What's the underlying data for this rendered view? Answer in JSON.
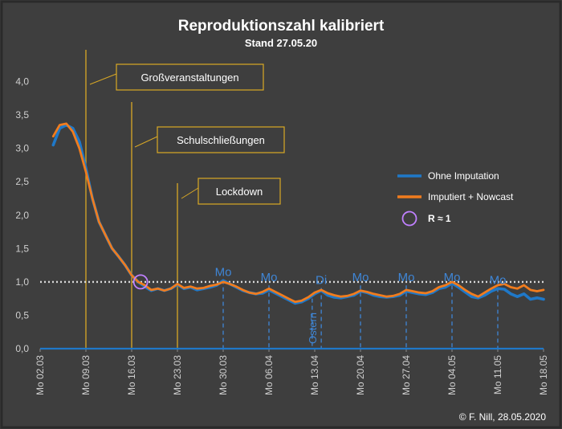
{
  "chart_data": {
    "type": "line",
    "title": "Reproduktionszahl kalibriert",
    "subtitle": "Stand 27.05.20",
    "credit": "© F. Nill, 28.05.2020",
    "xlabel": "",
    "ylabel": "",
    "ylim": [
      0,
      4.5
    ],
    "yticks": [
      "0,0",
      "0,5",
      "1,0",
      "1,5",
      "2,0",
      "2,5",
      "3,0",
      "3,5",
      "4,0"
    ],
    "ytick_values": [
      0,
      0.5,
      1.0,
      1.5,
      2.0,
      2.5,
      3.0,
      3.5,
      4.0
    ],
    "xlim": [
      "2020-03-02",
      "2020-05-18"
    ],
    "xticks": [
      "Mo 02.03",
      "Mo 09.03",
      "Mo 16.03",
      "Mo 23.03",
      "Mo 30.03",
      "Mo 06.04",
      "Mo 13.04",
      "Mo 20.04",
      "Mo 27.04",
      "Mo 04.05",
      "Mo 11.05",
      "Mo 18.05"
    ],
    "xtick_dates": [
      "2020-03-02",
      "2020-03-09",
      "2020-03-16",
      "2020-03-23",
      "2020-03-30",
      "2020-04-06",
      "2020-04-13",
      "2020-04-20",
      "2020-04-27",
      "2020-05-04",
      "2020-05-11",
      "2020-05-18"
    ],
    "grid": false,
    "legend_position": "right",
    "reference_line": {
      "y": 1.0,
      "style": "dotted",
      "color": "#d8d8d8"
    },
    "series": [
      {
        "name": "Ohne Imputation",
        "color": "#1f78c8",
        "x": [
          "2020-03-04",
          "2020-03-05",
          "2020-03-06",
          "2020-03-07",
          "2020-03-08",
          "2020-03-09",
          "2020-03-10",
          "2020-03-11",
          "2020-03-12",
          "2020-03-13",
          "2020-03-14",
          "2020-03-15",
          "2020-03-16",
          "2020-03-17",
          "2020-03-18",
          "2020-03-19",
          "2020-03-20",
          "2020-03-21",
          "2020-03-22",
          "2020-03-23",
          "2020-03-24",
          "2020-03-25",
          "2020-03-26",
          "2020-03-27",
          "2020-03-28",
          "2020-03-29",
          "2020-03-30",
          "2020-03-31",
          "2020-04-01",
          "2020-04-02",
          "2020-04-03",
          "2020-04-04",
          "2020-04-05",
          "2020-04-06",
          "2020-04-07",
          "2020-04-08",
          "2020-04-09",
          "2020-04-10",
          "2020-04-11",
          "2020-04-12",
          "2020-04-13",
          "2020-04-14",
          "2020-04-15",
          "2020-04-16",
          "2020-04-17",
          "2020-04-18",
          "2020-04-19",
          "2020-04-20",
          "2020-04-21",
          "2020-04-22",
          "2020-04-23",
          "2020-04-24",
          "2020-04-25",
          "2020-04-26",
          "2020-04-27",
          "2020-04-28",
          "2020-04-29",
          "2020-04-30",
          "2020-05-01",
          "2020-05-02",
          "2020-05-03",
          "2020-05-04",
          "2020-05-05",
          "2020-05-06",
          "2020-05-07",
          "2020-05-08",
          "2020-05-09",
          "2020-05-10",
          "2020-05-11",
          "2020-05-12",
          "2020-05-13",
          "2020-05-14",
          "2020-05-15",
          "2020-05-16",
          "2020-05-17",
          "2020-05-18"
        ],
        "values": [
          3.05,
          3.3,
          3.35,
          3.3,
          3.1,
          2.7,
          2.25,
          1.9,
          1.7,
          1.5,
          1.38,
          1.25,
          1.1,
          1.0,
          0.93,
          0.87,
          0.9,
          0.87,
          0.9,
          0.96,
          0.9,
          0.92,
          0.88,
          0.9,
          0.92,
          0.95,
          1.02,
          0.97,
          0.92,
          0.87,
          0.84,
          0.82,
          0.83,
          0.88,
          0.83,
          0.78,
          0.73,
          0.68,
          0.7,
          0.75,
          0.82,
          0.87,
          0.8,
          0.77,
          0.76,
          0.78,
          0.8,
          0.86,
          0.84,
          0.8,
          0.78,
          0.77,
          0.78,
          0.8,
          0.86,
          0.84,
          0.82,
          0.81,
          0.84,
          0.9,
          0.92,
          0.98,
          0.92,
          0.85,
          0.78,
          0.76,
          0.8,
          0.86,
          0.9,
          0.89,
          0.82,
          0.78,
          0.82,
          0.74,
          0.76,
          0.74
        ]
      },
      {
        "name": "Imputiert + Nowcast",
        "color": "#f07c1e",
        "x": [
          "2020-03-04",
          "2020-03-05",
          "2020-03-06",
          "2020-03-07",
          "2020-03-08",
          "2020-03-09",
          "2020-03-10",
          "2020-03-11",
          "2020-03-12",
          "2020-03-13",
          "2020-03-14",
          "2020-03-15",
          "2020-03-16",
          "2020-03-17",
          "2020-03-18",
          "2020-03-19",
          "2020-03-20",
          "2020-03-21",
          "2020-03-22",
          "2020-03-23",
          "2020-03-24",
          "2020-03-25",
          "2020-03-26",
          "2020-03-27",
          "2020-03-28",
          "2020-03-29",
          "2020-03-30",
          "2020-03-31",
          "2020-04-01",
          "2020-04-02",
          "2020-04-03",
          "2020-04-04",
          "2020-04-05",
          "2020-04-06",
          "2020-04-07",
          "2020-04-08",
          "2020-04-09",
          "2020-04-10",
          "2020-04-11",
          "2020-04-12",
          "2020-04-13",
          "2020-04-14",
          "2020-04-15",
          "2020-04-16",
          "2020-04-17",
          "2020-04-18",
          "2020-04-19",
          "2020-04-20",
          "2020-04-21",
          "2020-04-22",
          "2020-04-23",
          "2020-04-24",
          "2020-04-25",
          "2020-04-26",
          "2020-04-27",
          "2020-04-28",
          "2020-04-29",
          "2020-04-30",
          "2020-05-01",
          "2020-05-02",
          "2020-05-03",
          "2020-05-04",
          "2020-05-05",
          "2020-05-06",
          "2020-05-07",
          "2020-05-08",
          "2020-05-09",
          "2020-05-10",
          "2020-05-11",
          "2020-05-12",
          "2020-05-13",
          "2020-05-14",
          "2020-05-15",
          "2020-05-16",
          "2020-05-17",
          "2020-05-18"
        ],
        "values": [
          3.18,
          3.35,
          3.37,
          3.25,
          3.0,
          2.65,
          2.25,
          1.9,
          1.7,
          1.5,
          1.38,
          1.25,
          1.1,
          1.0,
          0.95,
          0.88,
          0.9,
          0.87,
          0.9,
          0.97,
          0.91,
          0.93,
          0.9,
          0.91,
          0.94,
          0.96,
          1.0,
          0.97,
          0.93,
          0.88,
          0.84,
          0.82,
          0.85,
          0.9,
          0.85,
          0.8,
          0.75,
          0.7,
          0.72,
          0.77,
          0.84,
          0.88,
          0.83,
          0.8,
          0.78,
          0.79,
          0.82,
          0.87,
          0.85,
          0.82,
          0.8,
          0.78,
          0.79,
          0.82,
          0.88,
          0.86,
          0.84,
          0.83,
          0.86,
          0.92,
          0.95,
          1.0,
          0.95,
          0.88,
          0.82,
          0.78,
          0.84,
          0.9,
          0.95,
          0.97,
          0.92,
          0.9,
          0.95,
          0.88,
          0.86,
          0.88
        ]
      }
    ],
    "marker_point": {
      "label": "R ≈ 1",
      "date": "2020-03-17",
      "value": 1.0,
      "color": "#c080ff"
    },
    "annotations": [
      {
        "label": "Großveranstaltungen",
        "date": "2020-03-09"
      },
      {
        "label": "Schulschließungen",
        "date": "2020-03-16"
      },
      {
        "label": "Lockdown",
        "date": "2020-03-23"
      }
    ],
    "day_labels": [
      {
        "label": "Mo",
        "date": "2020-03-30",
        "value": 1.1
      },
      {
        "label": "Mo",
        "date": "2020-04-06",
        "value": 1.02
      },
      {
        "label": "Di",
        "date": "2020-04-14",
        "value": 0.98
      },
      {
        "label": "Mo",
        "date": "2020-04-20",
        "value": 1.02
      },
      {
        "label": "Mo",
        "date": "2020-04-27",
        "value": 1.02
      },
      {
        "label": "Mo",
        "date": "2020-05-04",
        "value": 1.02
      },
      {
        "label": "Mo",
        "date": "2020-05-11",
        "value": 0.98
      }
    ],
    "holiday_label": {
      "label": "Ostern",
      "date": "2020-04-12"
    }
  },
  "colors": {
    "background": "#3e3e3e",
    "text": "#ffffff",
    "axis_text": "#d0d0d0",
    "event_line": "#d9a825",
    "day_label": "#3f86d6"
  }
}
